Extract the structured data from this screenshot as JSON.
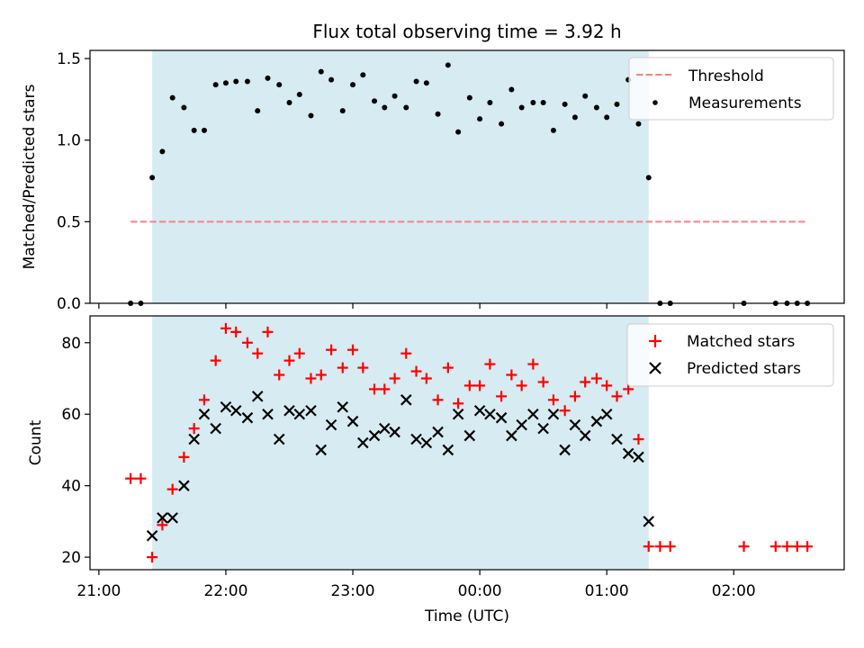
{
  "chart_data": [
    {
      "type": "scatter",
      "title": "Flux total observing time = 3.92 h",
      "xlabel": "",
      "ylabel": "Matched/Predicted stars",
      "ylim": [
        0,
        1.55
      ],
      "yticks": [
        "0.0",
        "0.5",
        "1.0",
        "1.5"
      ],
      "xticks": [
        "21:00",
        "22:00",
        "23:00",
        "00:00",
        "01:00",
        "02:00"
      ],
      "xlim_hours": [
        20.93,
        26.87
      ],
      "observing_window_hours": [
        21.42,
        25.33
      ],
      "threshold": {
        "name": "Threshold",
        "value": 0.5,
        "x_range_hours": [
          21.25,
          26.58
        ],
        "color": "#ff8080"
      },
      "legend_position": "top-right",
      "series": [
        {
          "name": "Measurements",
          "color": "#000000",
          "marker": "dot",
          "points": [
            [
              21.25,
              0.0
            ],
            [
              21.33,
              0.0
            ],
            [
              21.42,
              0.77
            ],
            [
              21.5,
              0.93
            ],
            [
              21.58,
              1.26
            ],
            [
              21.67,
              1.2
            ],
            [
              21.75,
              1.06
            ],
            [
              21.83,
              1.06
            ],
            [
              21.92,
              1.34
            ],
            [
              22.0,
              1.35
            ],
            [
              22.08,
              1.36
            ],
            [
              22.17,
              1.36
            ],
            [
              22.25,
              1.18
            ],
            [
              22.33,
              1.38
            ],
            [
              22.42,
              1.34
            ],
            [
              22.5,
              1.23
            ],
            [
              22.58,
              1.28
            ],
            [
              22.67,
              1.15
            ],
            [
              22.75,
              1.42
            ],
            [
              22.83,
              1.37
            ],
            [
              22.92,
              1.18
            ],
            [
              23.0,
              1.34
            ],
            [
              23.08,
              1.4
            ],
            [
              23.17,
              1.24
            ],
            [
              23.25,
              1.2
            ],
            [
              23.33,
              1.27
            ],
            [
              23.42,
              1.2
            ],
            [
              23.5,
              1.36
            ],
            [
              23.58,
              1.35
            ],
            [
              23.67,
              1.16
            ],
            [
              23.75,
              1.46
            ],
            [
              23.83,
              1.05
            ],
            [
              23.92,
              1.26
            ],
            [
              24.0,
              1.13
            ],
            [
              24.08,
              1.23
            ],
            [
              24.17,
              1.1
            ],
            [
              24.25,
              1.31
            ],
            [
              24.33,
              1.2
            ],
            [
              24.42,
              1.23
            ],
            [
              24.5,
              1.23
            ],
            [
              24.58,
              1.06
            ],
            [
              24.67,
              1.22
            ],
            [
              24.75,
              1.14
            ],
            [
              24.83,
              1.27
            ],
            [
              24.92,
              1.2
            ],
            [
              25.0,
              1.14
            ],
            [
              25.08,
              1.22
            ],
            [
              25.17,
              1.37
            ],
            [
              25.25,
              1.1
            ],
            [
              25.33,
              0.77
            ],
            [
              25.42,
              0.0
            ],
            [
              25.5,
              0.0
            ],
            [
              26.08,
              0.0
            ],
            [
              26.33,
              0.0
            ],
            [
              26.42,
              0.0
            ],
            [
              26.5,
              0.0
            ],
            [
              26.58,
              0.0
            ]
          ]
        }
      ]
    },
    {
      "type": "scatter",
      "title": "",
      "xlabel": "Time (UTC)",
      "ylabel": "Count",
      "ylim": [
        16.5,
        87.5
      ],
      "yticks": [
        "20",
        "40",
        "60",
        "80"
      ],
      "xticks": [
        "21:00",
        "22:00",
        "23:00",
        "00:00",
        "01:00",
        "02:00"
      ],
      "xlim_hours": [
        20.93,
        26.87
      ],
      "observing_window_hours": [
        21.42,
        25.33
      ],
      "legend_position": "top-right",
      "series": [
        {
          "name": "Matched stars",
          "color": "#ff0000",
          "marker": "plus",
          "points": [
            [
              21.25,
              42
            ],
            [
              21.33,
              42
            ],
            [
              21.42,
              20
            ],
            [
              21.5,
              29
            ],
            [
              21.58,
              39
            ],
            [
              21.67,
              48
            ],
            [
              21.75,
              56
            ],
            [
              21.83,
              64
            ],
            [
              21.92,
              75
            ],
            [
              22.0,
              84
            ],
            [
              22.08,
              83
            ],
            [
              22.17,
              80
            ],
            [
              22.25,
              77
            ],
            [
              22.33,
              83
            ],
            [
              22.42,
              71
            ],
            [
              22.5,
              75
            ],
            [
              22.58,
              77
            ],
            [
              22.67,
              70
            ],
            [
              22.75,
              71
            ],
            [
              22.83,
              78
            ],
            [
              22.92,
              73
            ],
            [
              23.0,
              78
            ],
            [
              23.08,
              73
            ],
            [
              23.17,
              67
            ],
            [
              23.25,
              67
            ],
            [
              23.33,
              70
            ],
            [
              23.42,
              77
            ],
            [
              23.5,
              72
            ],
            [
              23.58,
              70
            ],
            [
              23.67,
              64
            ],
            [
              23.75,
              73
            ],
            [
              23.83,
              63
            ],
            [
              23.92,
              68
            ],
            [
              24.0,
              68
            ],
            [
              24.08,
              74
            ],
            [
              24.17,
              65
            ],
            [
              24.25,
              71
            ],
            [
              24.33,
              68
            ],
            [
              24.42,
              74
            ],
            [
              24.5,
              69
            ],
            [
              24.58,
              64
            ],
            [
              24.67,
              61
            ],
            [
              24.75,
              65
            ],
            [
              24.83,
              69
            ],
            [
              24.92,
              70
            ],
            [
              25.0,
              68
            ],
            [
              25.08,
              65
            ],
            [
              25.17,
              67
            ],
            [
              25.25,
              53
            ],
            [
              25.33,
              23
            ],
            [
              25.42,
              23
            ],
            [
              25.5,
              23
            ],
            [
              26.08,
              23
            ],
            [
              26.33,
              23
            ],
            [
              26.42,
              23
            ],
            [
              26.5,
              23
            ],
            [
              26.58,
              23
            ]
          ]
        },
        {
          "name": "Predicted stars",
          "color": "#000000",
          "marker": "x",
          "points": [
            [
              21.42,
              26
            ],
            [
              21.5,
              31
            ],
            [
              21.58,
              31
            ],
            [
              21.67,
              40
            ],
            [
              21.75,
              53
            ],
            [
              21.83,
              60
            ],
            [
              21.92,
              56
            ],
            [
              22.0,
              62
            ],
            [
              22.08,
              61
            ],
            [
              22.17,
              59
            ],
            [
              22.25,
              65
            ],
            [
              22.33,
              60
            ],
            [
              22.42,
              53
            ],
            [
              22.5,
              61
            ],
            [
              22.58,
              60
            ],
            [
              22.67,
              61
            ],
            [
              22.75,
              50
            ],
            [
              22.83,
              57
            ],
            [
              22.92,
              62
            ],
            [
              23.0,
              58
            ],
            [
              23.08,
              52
            ],
            [
              23.17,
              54
            ],
            [
              23.25,
              56
            ],
            [
              23.33,
              55
            ],
            [
              23.42,
              64
            ],
            [
              23.5,
              53
            ],
            [
              23.58,
              52
            ],
            [
              23.67,
              55
            ],
            [
              23.75,
              50
            ],
            [
              23.83,
              60
            ],
            [
              23.92,
              54
            ],
            [
              24.0,
              61
            ],
            [
              24.08,
              60
            ],
            [
              24.17,
              59
            ],
            [
              24.25,
              54
            ],
            [
              24.33,
              57
            ],
            [
              24.42,
              60
            ],
            [
              24.5,
              56
            ],
            [
              24.58,
              60
            ],
            [
              24.67,
              50
            ],
            [
              24.75,
              57
            ],
            [
              24.83,
              54
            ],
            [
              24.92,
              58
            ],
            [
              25.0,
              60
            ],
            [
              25.08,
              53
            ],
            [
              25.17,
              49
            ],
            [
              25.25,
              48
            ],
            [
              25.33,
              30
            ]
          ]
        }
      ]
    }
  ]
}
